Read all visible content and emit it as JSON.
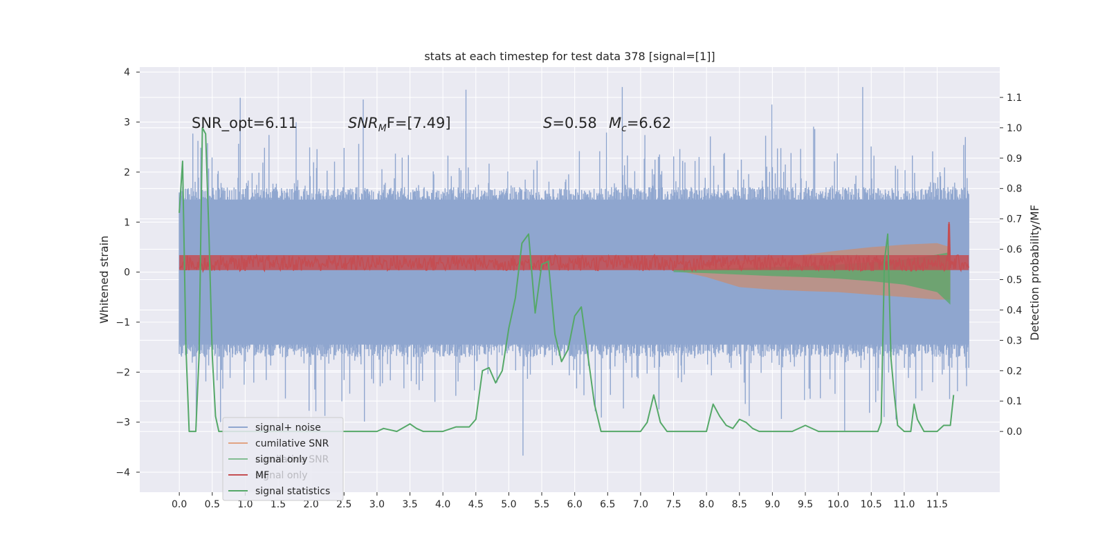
{
  "chart_data": {
    "type": "line",
    "title": "stats at each timestep for test data 378 [signal=[1]]",
    "ylabel": "Whitened strain",
    "ylabel_right": "Detection probability/MF",
    "xlim": [
      -0.6,
      12.45
    ],
    "ylim": [
      -4.4,
      4.1
    ],
    "ylim_right": [
      -0.2,
      1.2
    ],
    "grid": true,
    "x_ticks": [
      "0.0",
      "0.5",
      "1.0",
      "1.5",
      "2.0",
      "2.5",
      "3.0",
      "3.5",
      "4.0",
      "4.5",
      "5.0",
      "5.5",
      "6.0",
      "6.5",
      "7.0",
      "7.5",
      "8.0",
      "8.5",
      "9.0",
      "9.5",
      "10.0",
      "10.5",
      "11.0",
      "11.5"
    ],
    "y_ticks": [
      "4",
      "3",
      "2",
      "1",
      "0",
      "−1",
      "−2",
      "−3",
      "−4"
    ],
    "y_ticks_right": [
      "0.0",
      "0.1",
      "0.2",
      "0.3",
      "0.4",
      "0.5",
      "0.6",
      "0.7",
      "0.8",
      "0.9",
      "1.0",
      "1.1"
    ],
    "annotations": {
      "snr_opt": "SNR_opt=6.11",
      "snr_mf_italic": "SNR",
      "snr_mf_sub": "M",
      "snr_mf_tail": "F=[7.49]",
      "s_italic": "S",
      "s_tail": "=0.58",
      "mc_italic": "M",
      "mc_sub": "c",
      "mc_tail": "=6.62"
    },
    "legend": {
      "placement": "lower-left",
      "entries": [
        "signal+ noise",
        "cumilative SNR",
        "signal only",
        "MF",
        "signal statistics"
      ],
      "ghost_entries": [
        "cumilative SNR",
        "signal only"
      ]
    },
    "colors": {
      "signal_noise": "#8fa6cf",
      "cumulative_snr": "#dd8452",
      "signal_only": "#55a868",
      "mf": "#c44e52",
      "signal_statistics": "#55a868",
      "background": "#eaeaf2",
      "grid": "#ffffff"
    },
    "series": [
      {
        "name": "signal statistics",
        "axis": "right",
        "x": [
          0.0,
          0.05,
          0.1,
          0.15,
          0.2,
          0.25,
          0.3,
          0.35,
          0.4,
          0.45,
          0.5,
          0.55,
          0.6,
          0.65,
          0.7,
          0.8,
          1.0,
          1.5,
          2.0,
          2.5,
          3.0,
          3.1,
          3.3,
          3.5,
          3.6,
          3.7,
          4.0,
          4.2,
          4.4,
          4.5,
          4.6,
          4.7,
          4.8,
          4.9,
          5.0,
          5.1,
          5.2,
          5.3,
          5.4,
          5.5,
          5.6,
          5.7,
          5.8,
          5.9,
          6.0,
          6.1,
          6.2,
          6.3,
          6.4,
          6.5,
          7.0,
          7.1,
          7.2,
          7.3,
          7.4,
          7.6,
          8.0,
          8.1,
          8.2,
          8.3,
          8.4,
          8.5,
          8.6,
          8.7,
          8.8,
          9.0,
          9.3,
          9.5,
          9.7,
          10.0,
          10.6,
          10.65,
          10.7,
          10.75,
          10.8,
          10.85,
          10.9,
          11.0,
          11.1,
          11.15,
          11.2,
          11.3,
          11.4,
          11.5,
          11.6,
          11.65,
          11.7,
          11.75
        ],
        "y": [
          0.72,
          0.89,
          0.28,
          0.0,
          0.0,
          0.0,
          0.25,
          1.0,
          0.98,
          0.65,
          0.25,
          0.05,
          0.0,
          0.0,
          0.0,
          0.0,
          0.0,
          0.0,
          0.0,
          0.0,
          0.0,
          0.01,
          0.0,
          0.025,
          0.01,
          0.0,
          0.0,
          0.015,
          0.015,
          0.04,
          0.2,
          0.21,
          0.16,
          0.2,
          0.34,
          0.44,
          0.62,
          0.65,
          0.39,
          0.55,
          0.56,
          0.32,
          0.23,
          0.27,
          0.38,
          0.41,
          0.25,
          0.09,
          0.0,
          0.0,
          0.0,
          0.03,
          0.12,
          0.03,
          0.0,
          0.0,
          0.0,
          0.09,
          0.05,
          0.02,
          0.01,
          0.04,
          0.03,
          0.01,
          0.0,
          0.0,
          0.0,
          0.02,
          0.0,
          0.0,
          0.0,
          0.03,
          0.56,
          0.65,
          0.24,
          0.12,
          0.02,
          0.0,
          0.0,
          0.09,
          0.04,
          0.0,
          0.0,
          0.0,
          0.02,
          0.02,
          0.02,
          0.12
        ]
      },
      {
        "name": "cumilative SNR",
        "axis": "left",
        "x": [
          7.5,
          8.0,
          8.5,
          9.0,
          9.5,
          10.0,
          10.5,
          11.0,
          11.5,
          11.7
        ],
        "y_upper": [
          0.05,
          0.15,
          0.22,
          0.28,
          0.35,
          0.43,
          0.5,
          0.55,
          0.58,
          0.5
        ],
        "y_lower": [
          0.05,
          -0.1,
          -0.3,
          -0.35,
          -0.38,
          -0.4,
          -0.45,
          -0.5,
          -0.55,
          -0.55
        ]
      },
      {
        "name": "signal only",
        "axis": "left",
        "x": [
          7.5,
          8.0,
          8.5,
          9.0,
          9.5,
          10.0,
          10.5,
          11.0,
          11.5,
          11.7
        ],
        "y_upper": [
          0.05,
          0.06,
          0.08,
          0.1,
          0.12,
          0.15,
          0.2,
          0.25,
          0.35,
          0.4
        ],
        "y_lower": [
          0.0,
          -0.02,
          -0.05,
          -0.08,
          -0.1,
          -0.13,
          -0.18,
          -0.25,
          -0.4,
          -0.65
        ]
      }
    ]
  }
}
